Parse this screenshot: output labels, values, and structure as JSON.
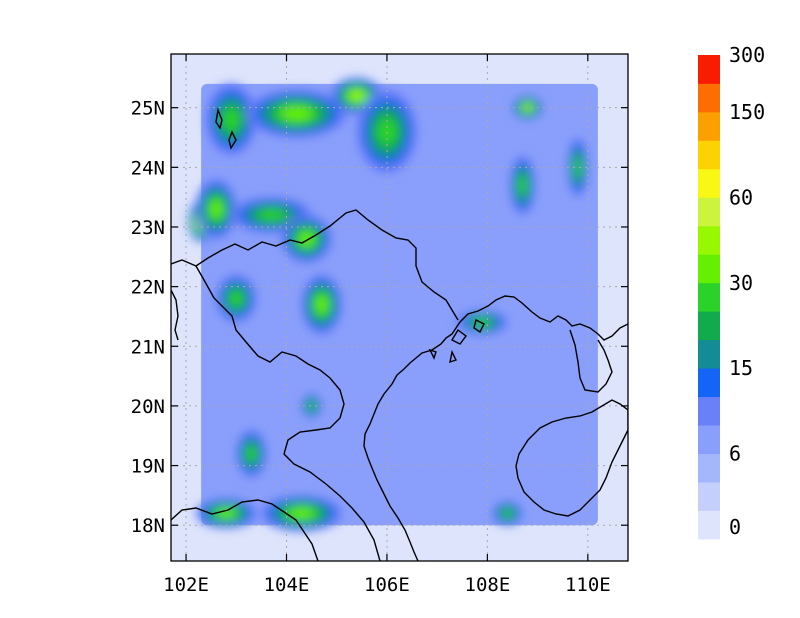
{
  "map": {
    "lon_range": [
      101.7,
      110.8
    ],
    "lat_range": [
      17.4,
      25.9
    ],
    "x_ticks": [
      {
        "value": 102,
        "label": "102E"
      },
      {
        "value": 104,
        "label": "104E"
      },
      {
        "value": 106,
        "label": "106E"
      },
      {
        "value": 108,
        "label": "108E"
      },
      {
        "value": 110,
        "label": "110E"
      }
    ],
    "y_ticks": [
      {
        "value": 18,
        "label": "18N"
      },
      {
        "value": 19,
        "label": "19N"
      },
      {
        "value": 20,
        "label": "20N"
      },
      {
        "value": 21,
        "label": "21N"
      },
      {
        "value": 22,
        "label": "22N"
      },
      {
        "value": 23,
        "label": "23N"
      },
      {
        "value": 24,
        "label": "24N"
      },
      {
        "value": 25,
        "label": "25N"
      }
    ],
    "grid": "dotted",
    "data_domain": {
      "lon": [
        102.3,
        110.2
      ],
      "lat": [
        18.0,
        25.4
      ]
    }
  },
  "colorbar": {
    "colors": [
      "#dde4fb",
      "#c4d0fb",
      "#a5b7fb",
      "#8a9ffb",
      "#6a80f8",
      "#1464f6",
      "#148c96",
      "#11aa4c",
      "#2ad22a",
      "#64f000",
      "#98f800",
      "#ccf43c",
      "#f8f814",
      "#fcd200",
      "#fca000",
      "#fc6e00",
      "#fa1c00"
    ],
    "labels": [
      {
        "text": "0",
        "level": 0
      },
      {
        "text": "6",
        "level": 2
      },
      {
        "text": "15",
        "level": 5
      },
      {
        "text": "30",
        "level": 8
      },
      {
        "text": "60",
        "level": 11
      },
      {
        "text": "150",
        "level": 14
      },
      {
        "text": "300",
        "level": 16
      }
    ]
  },
  "rain_features": [
    {
      "lon": 102.9,
      "lat": 24.8,
      "level": 8,
      "rx": 0.5,
      "ry": 0.6
    },
    {
      "lon": 102.3,
      "lat": 23.1,
      "level": 12,
      "rx": 0.25,
      "ry": 0.35
    },
    {
      "lon": 102.6,
      "lat": 23.3,
      "level": 9,
      "rx": 0.4,
      "ry": 0.5
    },
    {
      "lon": 104.2,
      "lat": 24.9,
      "level": 9,
      "rx": 1.0,
      "ry": 0.4
    },
    {
      "lon": 105.4,
      "lat": 25.2,
      "level": 10,
      "rx": 0.5,
      "ry": 0.3
    },
    {
      "lon": 106.0,
      "lat": 24.6,
      "level": 8,
      "rx": 0.6,
      "ry": 0.7
    },
    {
      "lon": 103.7,
      "lat": 23.2,
      "level": 8,
      "rx": 0.8,
      "ry": 0.3
    },
    {
      "lon": 104.4,
      "lat": 22.8,
      "level": 9,
      "rx": 0.5,
      "ry": 0.4
    },
    {
      "lon": 104.7,
      "lat": 21.7,
      "level": 9,
      "rx": 0.4,
      "ry": 0.5
    },
    {
      "lon": 103.0,
      "lat": 21.8,
      "level": 8,
      "rx": 0.4,
      "ry": 0.4
    },
    {
      "lon": 107.9,
      "lat": 21.4,
      "level": 8,
      "rx": 0.5,
      "ry": 0.2
    },
    {
      "lon": 108.8,
      "lat": 25.0,
      "level": 10,
      "rx": 0.3,
      "ry": 0.2
    },
    {
      "lon": 109.8,
      "lat": 24.0,
      "level": 8,
      "rx": 0.2,
      "ry": 0.5
    },
    {
      "lon": 108.7,
      "lat": 23.7,
      "level": 8,
      "rx": 0.25,
      "ry": 0.5
    },
    {
      "lon": 102.8,
      "lat": 18.2,
      "level": 9,
      "rx": 0.6,
      "ry": 0.25
    },
    {
      "lon": 104.3,
      "lat": 18.2,
      "level": 9,
      "rx": 0.8,
      "ry": 0.3
    },
    {
      "lon": 103.3,
      "lat": 19.2,
      "level": 8,
      "rx": 0.3,
      "ry": 0.4
    },
    {
      "lon": 104.5,
      "lat": 20.0,
      "level": 8,
      "rx": 0.2,
      "ry": 0.2
    },
    {
      "lon": 108.4,
      "lat": 18.2,
      "level": 8,
      "rx": 0.3,
      "ry": 0.2
    }
  ]
}
